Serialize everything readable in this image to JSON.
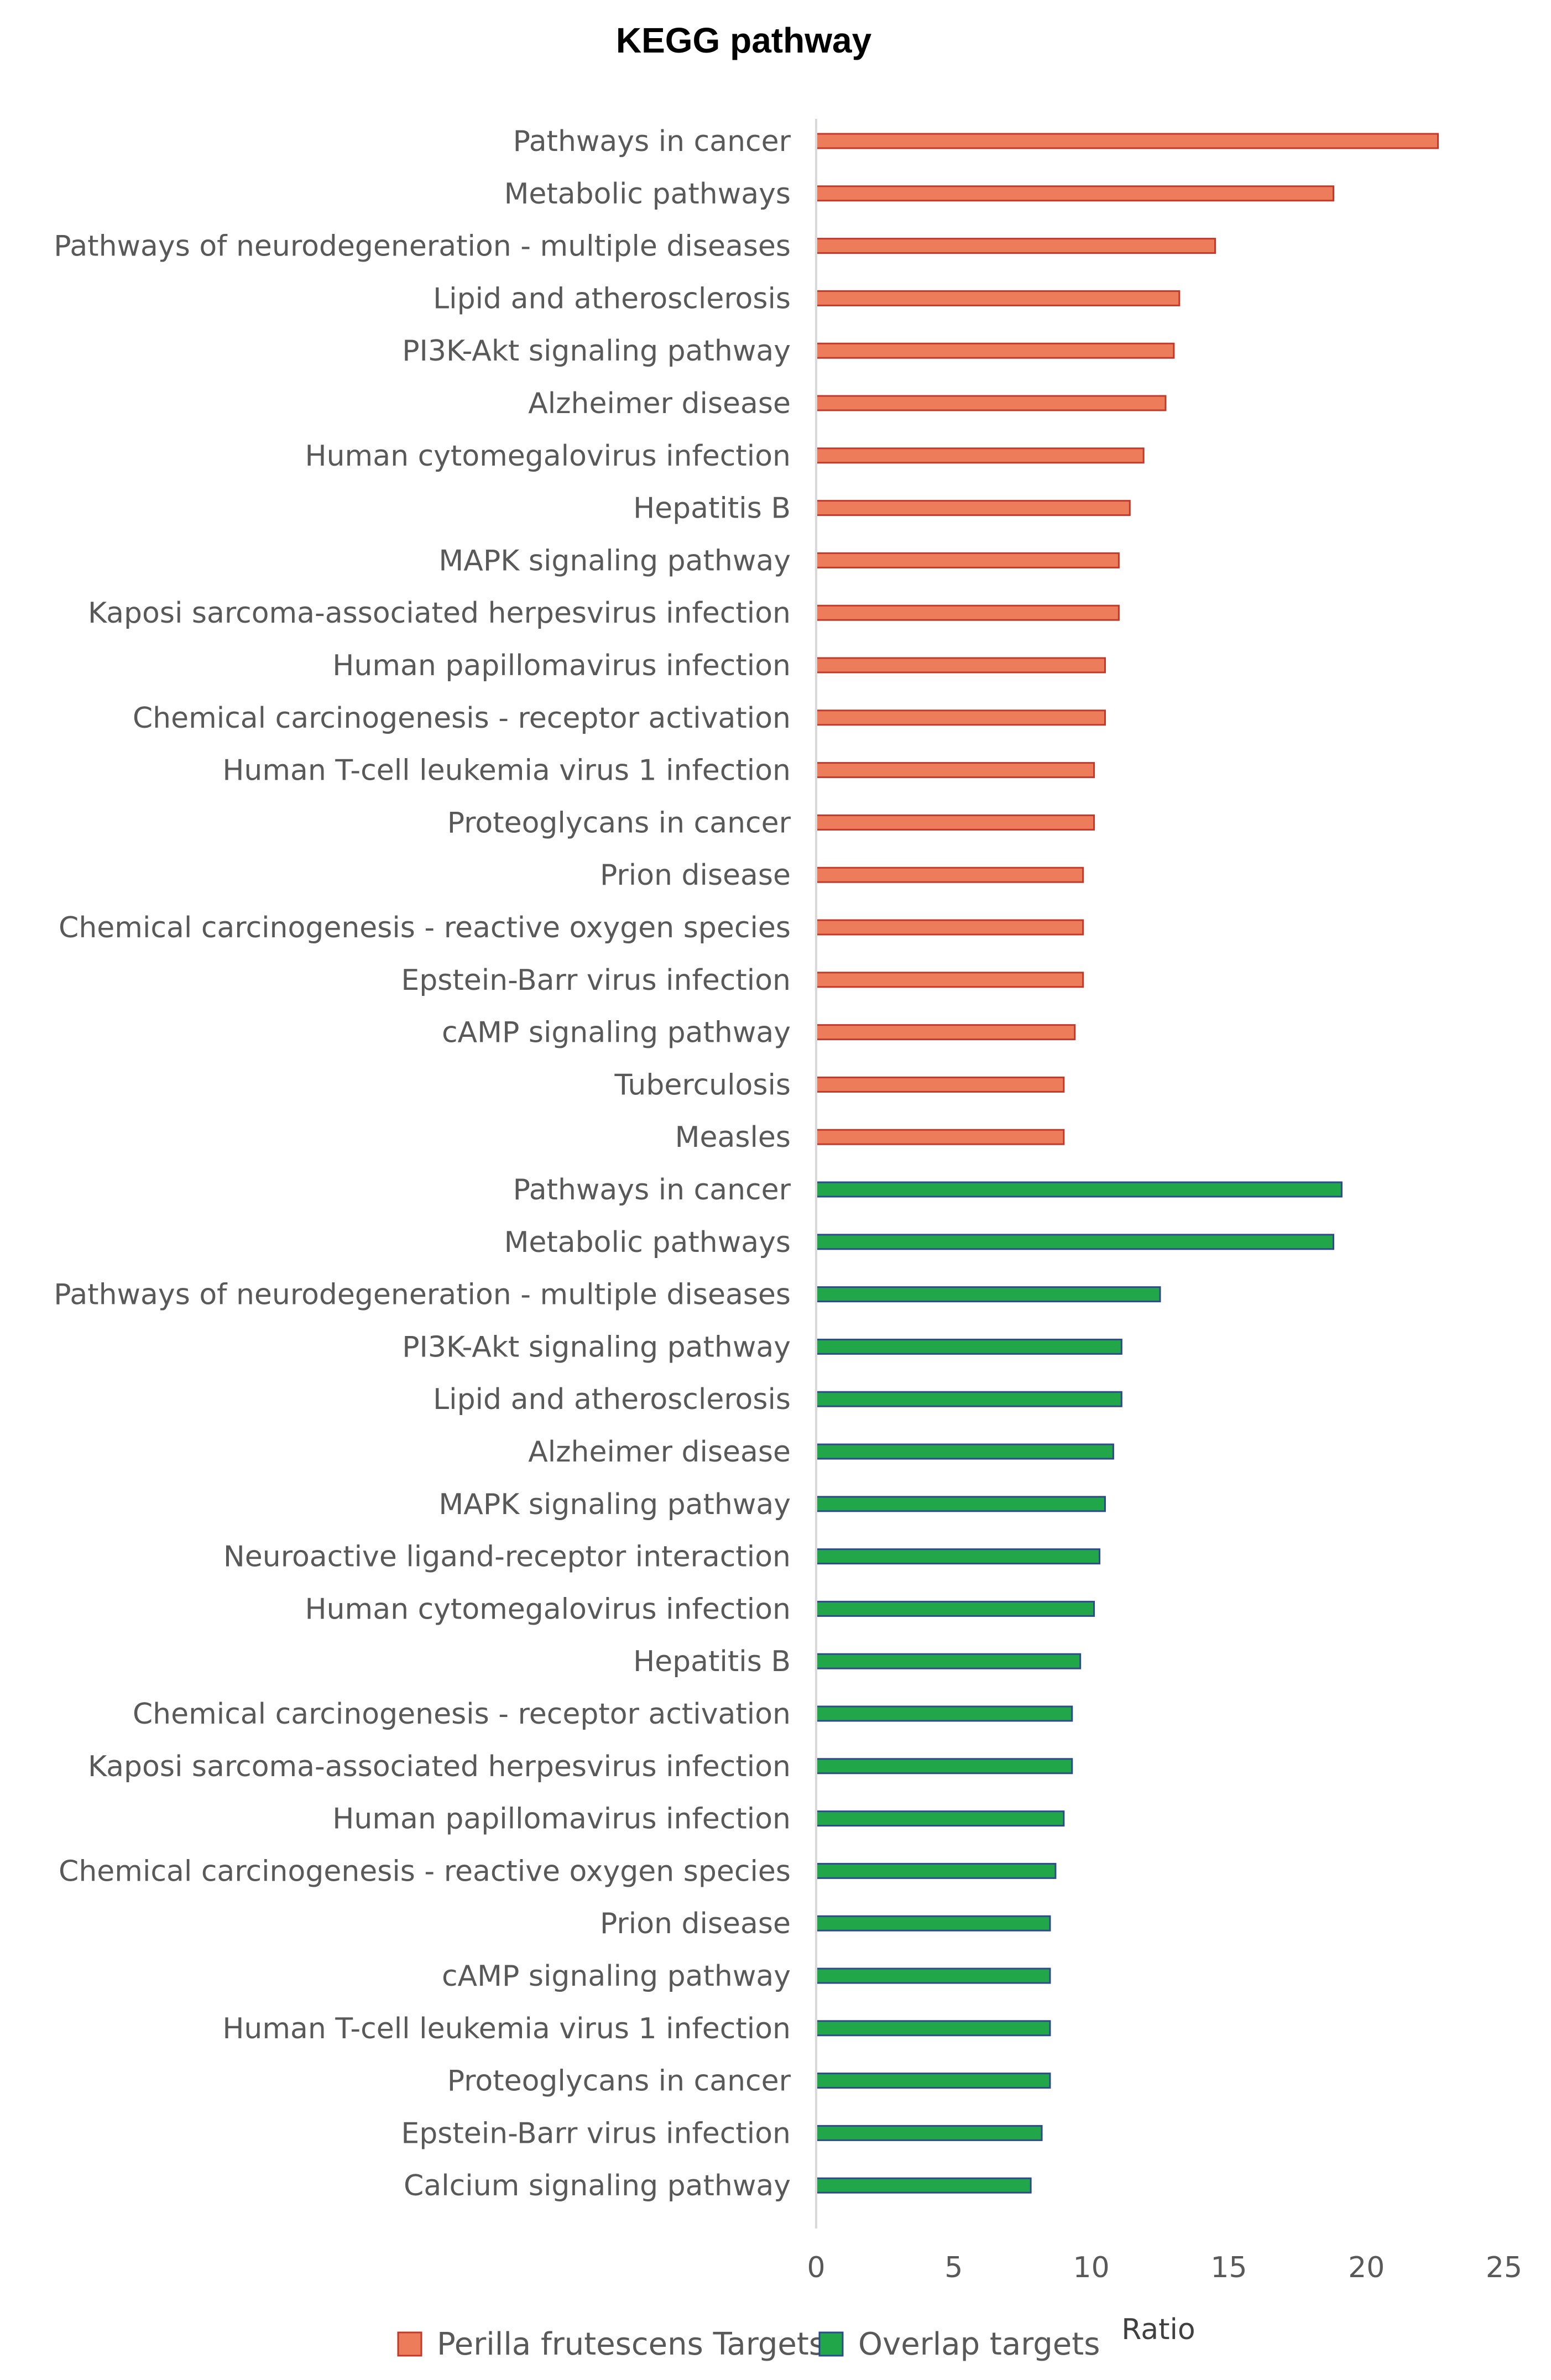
{
  "chart_data": {
    "type": "bar",
    "orientation": "horizontal",
    "title": "KEGG pathway",
    "xlabel": "Ratio",
    "ylabel": "",
    "xlim": [
      0,
      25
    ],
    "xticks": [
      0,
      5,
      10,
      15,
      20,
      25
    ],
    "grid": false,
    "legend_position": "bottom",
    "series": [
      {
        "name": "Perilla frutescens Targets",
        "color": "#ED7D5A",
        "edge_color": "#C0392B",
        "items": [
          {
            "label": "Pathways in cancer",
            "value": 22.6
          },
          {
            "label": "Metabolic pathways",
            "value": 18.8
          },
          {
            "label": "Pathways of neurodegeneration - multiple diseases",
            "value": 14.5
          },
          {
            "label": "Lipid and atherosclerosis",
            "value": 13.2
          },
          {
            "label": "PI3K-Akt signaling pathway",
            "value": 13.0
          },
          {
            "label": "Alzheimer disease",
            "value": 12.7
          },
          {
            "label": "Human cytomegalovirus infection",
            "value": 11.9
          },
          {
            "label": "Hepatitis B",
            "value": 11.4
          },
          {
            "label": "MAPK signaling pathway",
            "value": 11.0
          },
          {
            "label": "Kaposi sarcoma-associated herpesvirus infection",
            "value": 11.0
          },
          {
            "label": "Human papillomavirus infection",
            "value": 10.5
          },
          {
            "label": "Chemical carcinogenesis - receptor activation",
            "value": 10.5
          },
          {
            "label": "Human T-cell leukemia virus 1 infection",
            "value": 10.1
          },
          {
            "label": "Proteoglycans in cancer",
            "value": 10.1
          },
          {
            "label": "Prion disease",
            "value": 9.7
          },
          {
            "label": "Chemical carcinogenesis - reactive oxygen species",
            "value": 9.7
          },
          {
            "label": "Epstein-Barr virus infection",
            "value": 9.7
          },
          {
            "label": "cAMP signaling pathway",
            "value": 9.4
          },
          {
            "label": "Tuberculosis",
            "value": 9.0
          },
          {
            "label": "Measles",
            "value": 9.0
          }
        ]
      },
      {
        "name": "Overlap targets",
        "color": "#22A64A",
        "edge_color": "#2E4A8C",
        "items": [
          {
            "label": "Pathways in cancer",
            "value": 19.1
          },
          {
            "label": "Metabolic pathways",
            "value": 18.8
          },
          {
            "label": "Pathways of neurodegeneration - multiple diseases",
            "value": 12.5
          },
          {
            "label": "PI3K-Akt signaling pathway",
            "value": 11.1
          },
          {
            "label": "Lipid and atherosclerosis",
            "value": 11.1
          },
          {
            "label": "Alzheimer disease",
            "value": 10.8
          },
          {
            "label": "MAPK signaling pathway",
            "value": 10.5
          },
          {
            "label": "Neuroactive ligand-receptor interaction",
            "value": 10.3
          },
          {
            "label": "Human cytomegalovirus infection",
            "value": 10.1
          },
          {
            "label": "Hepatitis B",
            "value": 9.6
          },
          {
            "label": "Chemical carcinogenesis - receptor activation",
            "value": 9.3
          },
          {
            "label": "Kaposi sarcoma-associated herpesvirus infection",
            "value": 9.3
          },
          {
            "label": "Human papillomavirus infection",
            "value": 9.0
          },
          {
            "label": "Chemical carcinogenesis - reactive oxygen species",
            "value": 8.7
          },
          {
            "label": "Prion disease",
            "value": 8.5
          },
          {
            "label": "cAMP signaling pathway",
            "value": 8.5
          },
          {
            "label": "Human T-cell leukemia virus 1 infection",
            "value": 8.5
          },
          {
            "label": "Proteoglycans in cancer",
            "value": 8.5
          },
          {
            "label": "Epstein-Barr virus infection",
            "value": 8.2
          },
          {
            "label": "Calcium signaling pathway",
            "value": 7.8
          }
        ]
      }
    ]
  }
}
